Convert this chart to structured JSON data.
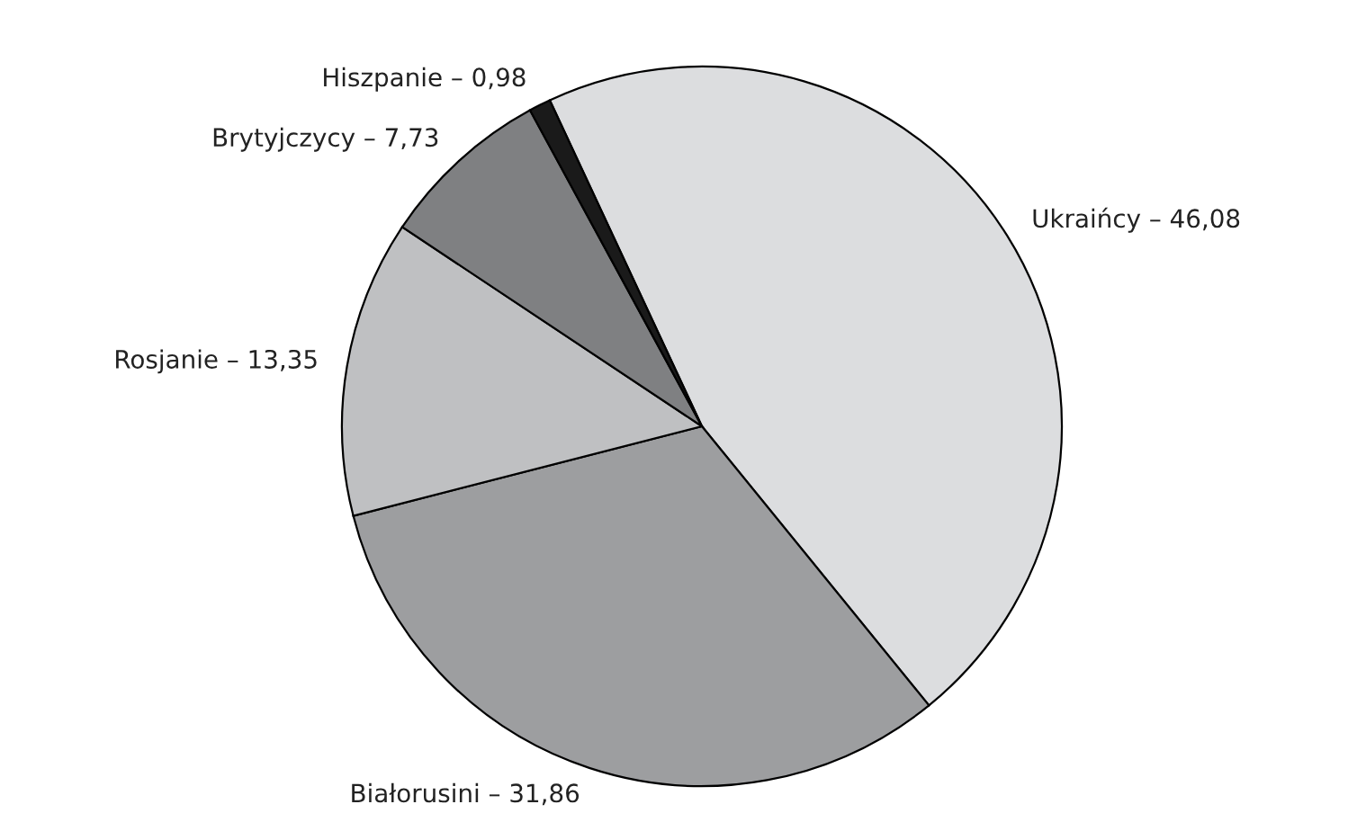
{
  "chart_data": {
    "type": "pie",
    "categories": [
      "Ukraińcy – 46,08",
      "Białorusini – 31,86",
      "Rosjanie – 13,35",
      "Brytyjczycy – 7,73",
      "Hiszpanie – 0,98"
    ],
    "values": [
      46.08,
      31.86,
      13.35,
      7.73,
      0.98
    ],
    "colors": [
      "#dcdddf",
      "#9d9ea0",
      "#bfc0c2",
      "#7f8082",
      "#1a1a1a"
    ],
    "legend": false
  }
}
